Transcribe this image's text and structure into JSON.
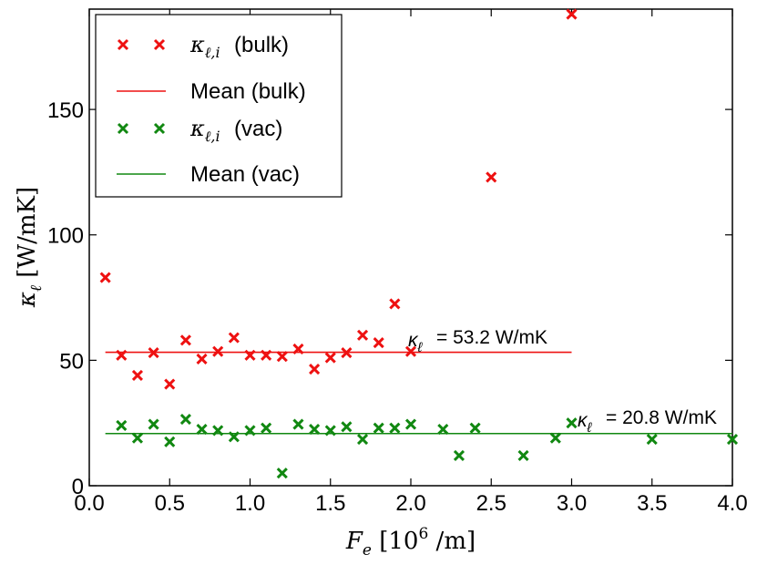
{
  "chart_data": {
    "type": "scatter",
    "xlabel": "F_e [10^6 /m]",
    "ylabel": "κ_ℓ [W/mK]",
    "xlim": [
      0.0,
      4.0
    ],
    "ylim": [
      0,
      190
    ],
    "x_ticks": [
      "0.0",
      "0.5",
      "1.0",
      "1.5",
      "2.0",
      "2.5",
      "3.0",
      "3.5",
      "4.0"
    ],
    "y_ticks": [
      "0",
      "50",
      "100",
      "150"
    ],
    "grid": false,
    "legend_position": "top-left",
    "series": [
      {
        "name": "κ_ℓ,i (bulk)",
        "legend_label": "(bulk)",
        "marker": "x",
        "color": "#ee1111",
        "points": [
          [
            0.1,
            83
          ],
          [
            0.2,
            52
          ],
          [
            0.3,
            44
          ],
          [
            0.4,
            53
          ],
          [
            0.5,
            40.5
          ],
          [
            0.6,
            58
          ],
          [
            0.7,
            50.5
          ],
          [
            0.8,
            53.5
          ],
          [
            0.9,
            59
          ],
          [
            1.0,
            52
          ],
          [
            1.1,
            52
          ],
          [
            1.2,
            51.5
          ],
          [
            1.3,
            54.5
          ],
          [
            1.4,
            46.5
          ],
          [
            1.5,
            51
          ],
          [
            1.6,
            53
          ],
          [
            1.7,
            60
          ],
          [
            1.8,
            57
          ],
          [
            1.9,
            72.5
          ],
          [
            2.0,
            53.5
          ],
          [
            2.5,
            123
          ],
          [
            3.0,
            188
          ]
        ]
      },
      {
        "name": "Mean (bulk)",
        "legend_label": "Mean (bulk)",
        "line": true,
        "color": "#ee1111",
        "y": 53.2,
        "x_range": [
          0.1,
          3.0
        ]
      },
      {
        "name": "κ_ℓ,i (vac)",
        "legend_label": "(vac)",
        "marker": "x",
        "color": "#118811",
        "points": [
          [
            0.2,
            24
          ],
          [
            0.3,
            19
          ],
          [
            0.4,
            24.5
          ],
          [
            0.5,
            17.5
          ],
          [
            0.6,
            26.5
          ],
          [
            0.7,
            22.5
          ],
          [
            0.8,
            22
          ],
          [
            0.9,
            19.5
          ],
          [
            1.0,
            22
          ],
          [
            1.1,
            23
          ],
          [
            1.2,
            5
          ],
          [
            1.3,
            24.5
          ],
          [
            1.4,
            22.5
          ],
          [
            1.5,
            22
          ],
          [
            1.6,
            23.5
          ],
          [
            1.7,
            18.5
          ],
          [
            1.8,
            23
          ],
          [
            1.9,
            23
          ],
          [
            2.0,
            24.5
          ],
          [
            2.2,
            22.5
          ],
          [
            2.3,
            12
          ],
          [
            2.4,
            23
          ],
          [
            2.7,
            12
          ],
          [
            2.9,
            19
          ],
          [
            3.0,
            25
          ],
          [
            3.5,
            18.5
          ],
          [
            4.0,
            18.5
          ]
        ]
      },
      {
        "name": "Mean (vac)",
        "legend_label": "Mean (vac)",
        "line": true,
        "color": "#118811",
        "y": 20.8,
        "x_range": [
          0.1,
          4.0
        ]
      }
    ],
    "annotations": [
      {
        "text": "= 53.2 W/mK",
        "series": "Mean (bulk)"
      },
      {
        "text": "= 20.8 W/mK",
        "series": "Mean (vac)"
      }
    ]
  }
}
